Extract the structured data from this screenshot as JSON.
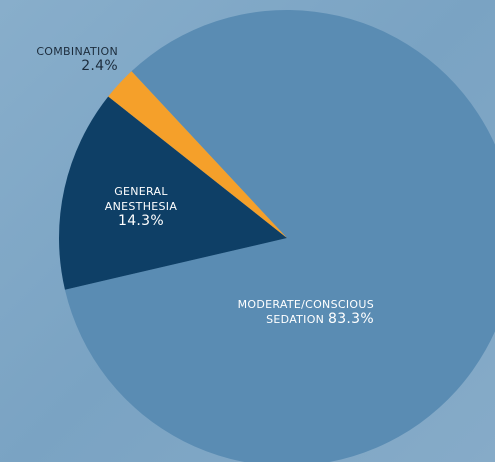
{
  "chart_data": {
    "type": "pie",
    "categories": [
      "MODERATE/CONSCIOUS SEDATION",
      "GENERAL ANESTHESIA",
      "COMBINATION"
    ],
    "values": [
      83.3,
      14.3,
      2.4
    ],
    "value_labels": [
      "83.3%",
      "14.3%",
      "2.4%"
    ],
    "colors": [
      "#5a8cb3",
      "#0e3f66",
      "#f5a02a"
    ]
  }
}
